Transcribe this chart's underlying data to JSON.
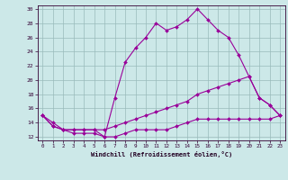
{
  "title": "",
  "xlabel": "Windchill (Refroidissement éolien,°C)",
  "ylabel": "",
  "background_color": "#cce8e8",
  "grid_color": "#99bbbb",
  "line_color": "#990099",
  "xlim": [
    -0.5,
    23.5
  ],
  "ylim": [
    11.5,
    30.5
  ],
  "yticks": [
    12,
    14,
    16,
    18,
    20,
    22,
    24,
    26,
    28,
    30
  ],
  "xticks": [
    0,
    1,
    2,
    3,
    4,
    5,
    6,
    7,
    8,
    9,
    10,
    11,
    12,
    13,
    14,
    15,
    16,
    17,
    18,
    19,
    20,
    21,
    22,
    23
  ],
  "series": [
    {
      "x": [
        0,
        1,
        2,
        3,
        4,
        5,
        6,
        7,
        8,
        9,
        10,
        11,
        12,
        13,
        14,
        15,
        16,
        17,
        18,
        19,
        20,
        21,
        22,
        23
      ],
      "y": [
        15,
        14,
        13,
        12.5,
        12.5,
        12.5,
        12,
        17.5,
        22.5,
        24.5,
        26,
        28,
        27,
        27.5,
        28.5,
        30,
        28.5,
        27,
        26,
        23.5,
        20.5,
        17.5,
        16.5,
        15
      ]
    },
    {
      "x": [
        0,
        1,
        2,
        3,
        4,
        5,
        6,
        7,
        8,
        9,
        10,
        11,
        12,
        13,
        14,
        15,
        16,
        17,
        18,
        19,
        20,
        21,
        22,
        23
      ],
      "y": [
        15,
        13.5,
        13,
        13,
        13,
        13,
        13,
        13.5,
        14,
        14.5,
        15,
        15.5,
        16,
        16.5,
        17,
        18,
        18.5,
        19,
        19.5,
        20,
        20.5,
        17.5,
        16.5,
        15
      ]
    },
    {
      "x": [
        0,
        1,
        2,
        3,
        4,
        5,
        6,
        7,
        8,
        9,
        10,
        11,
        12,
        13,
        14,
        15,
        16,
        17,
        18,
        19,
        20,
        21,
        22,
        23
      ],
      "y": [
        15,
        13.5,
        13,
        13,
        13,
        13,
        12,
        12,
        12.5,
        13,
        13,
        13,
        13,
        13.5,
        14,
        14.5,
        14.5,
        14.5,
        14.5,
        14.5,
        14.5,
        14.5,
        14.5,
        15
      ]
    }
  ]
}
